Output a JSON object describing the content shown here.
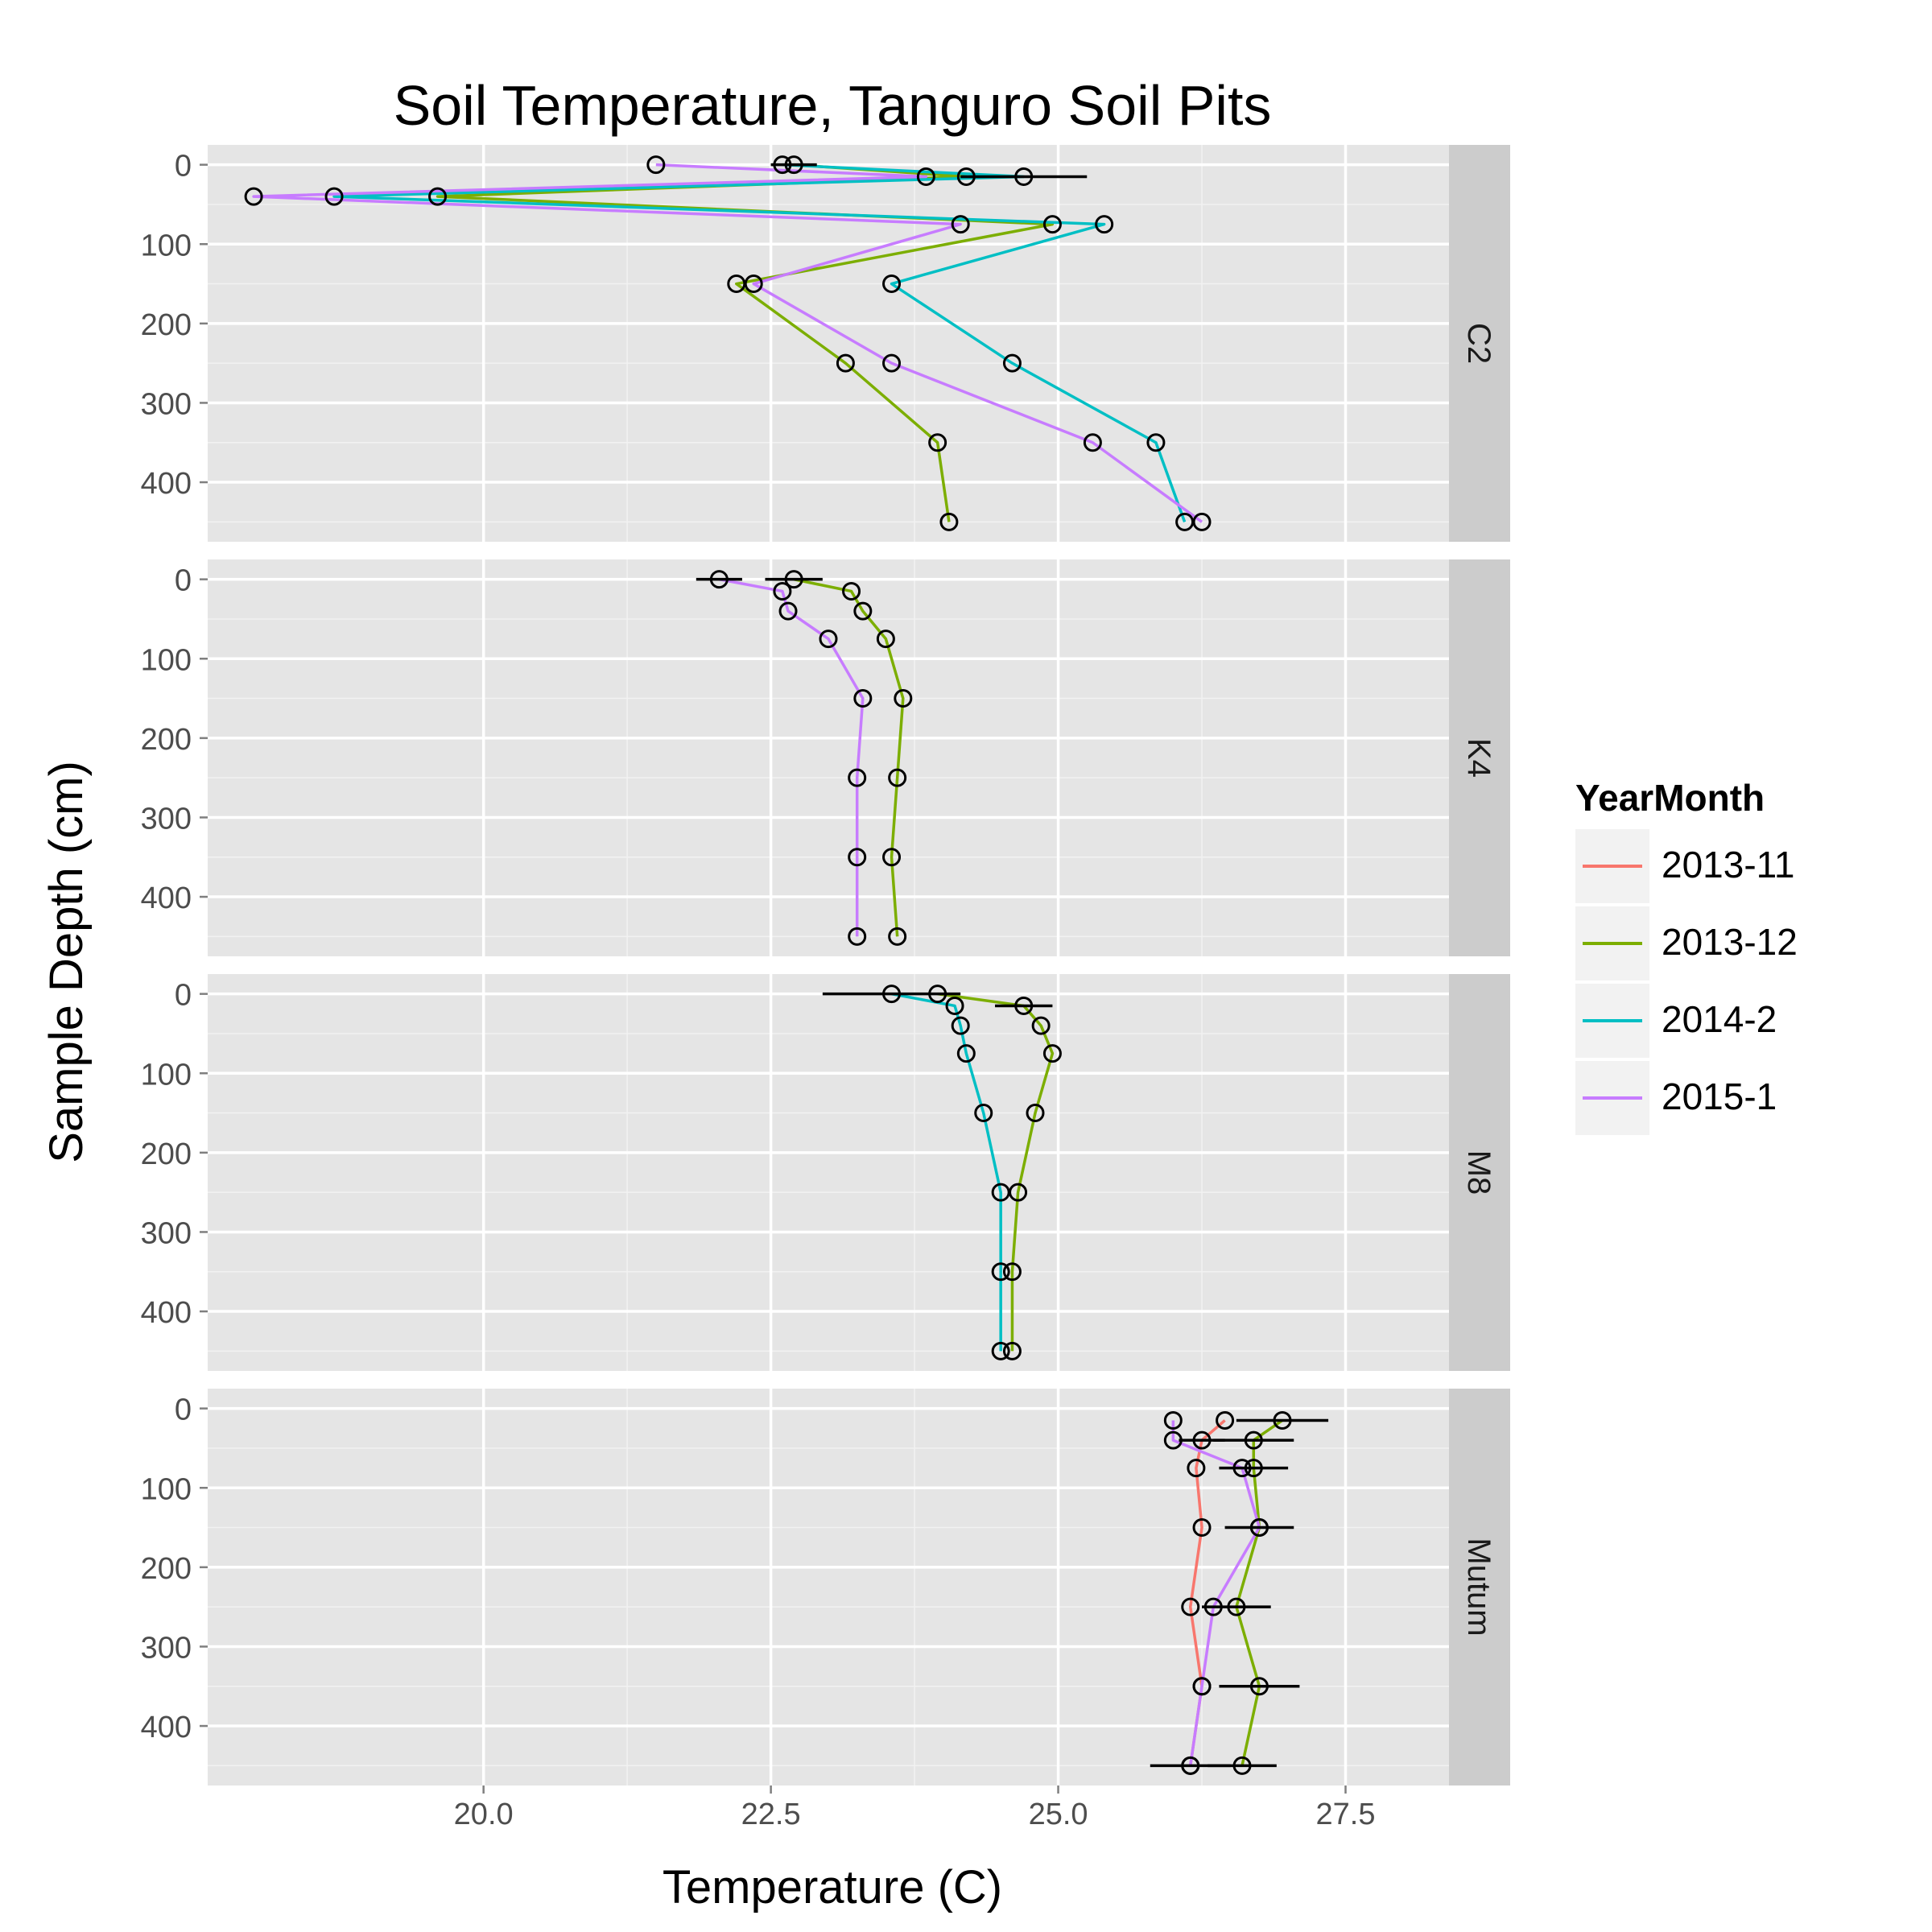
{
  "chart_data": {
    "type": "line",
    "title": "Soil Temperature, Tanguro Soil Pits",
    "xlabel": "Temperature (C)",
    "ylabel": "Sample Depth (cm)",
    "x_ticks": [
      "20.0",
      "22.5",
      "25.0",
      "27.5"
    ],
    "y_ticks": [
      "0",
      "100",
      "200",
      "300",
      "400"
    ],
    "xlim": [
      17.6,
      28.4
    ],
    "ylim": [
      -25,
      475
    ],
    "y_reversed": true,
    "grid": true,
    "legend_position": "right",
    "legend_title": "YearMonth",
    "background": "#e5e5e5",
    "strip_color": "#cccccc",
    "series_info": [
      {
        "name": "2013-11",
        "color": "#f8766d"
      },
      {
        "name": "2013-12",
        "color": "#7cae00"
      },
      {
        "name": "2014-2",
        "color": "#00bfc4"
      },
      {
        "name": "2015-1",
        "color": "#c77cff"
      }
    ],
    "panels": [
      {
        "name": "C2",
        "series": [
          {
            "name": "2013-12",
            "points": [
              {
                "x": 22.7,
                "y": 0,
                "err": 0.2
              },
              {
                "x": 24.2,
                "y": 15
              },
              {
                "x": 19.6,
                "y": 40
              },
              {
                "x": 24.95,
                "y": 75
              },
              {
                "x": 22.2,
                "y": 150
              },
              {
                "x": 23.15,
                "y": 250
              },
              {
                "x": 23.95,
                "y": 350
              },
              {
                "x": 24.05,
                "y": 450
              }
            ]
          },
          {
            "name": "2014-2",
            "points": [
              {
                "x": 22.6,
                "y": 0
              },
              {
                "x": 24.7,
                "y": 15,
                "err": 0.55
              },
              {
                "x": 18.7,
                "y": 40
              },
              {
                "x": 25.4,
                "y": 75
              },
              {
                "x": 23.55,
                "y": 150
              },
              {
                "x": 24.6,
                "y": 250
              },
              {
                "x": 25.85,
                "y": 350
              },
              {
                "x": 26.1,
                "y": 450
              }
            ]
          },
          {
            "name": "2015-1",
            "points": [
              {
                "x": 21.5,
                "y": 0
              },
              {
                "x": 23.85,
                "y": 15
              },
              {
                "x": 18.0,
                "y": 40
              },
              {
                "x": 24.15,
                "y": 75
              },
              {
                "x": 22.35,
                "y": 150
              },
              {
                "x": 23.55,
                "y": 250
              },
              {
                "x": 25.3,
                "y": 350
              },
              {
                "x": 26.25,
                "y": 450
              }
            ]
          }
        ]
      },
      {
        "name": "K4",
        "series": [
          {
            "name": "2013-12",
            "points": [
              {
                "x": 22.7,
                "y": 0,
                "err": 0.25
              },
              {
                "x": 23.2,
                "y": 15
              },
              {
                "x": 23.3,
                "y": 40
              },
              {
                "x": 23.5,
                "y": 75
              },
              {
                "x": 23.65,
                "y": 150
              },
              {
                "x": 23.6,
                "y": 250
              },
              {
                "x": 23.55,
                "y": 350
              },
              {
                "x": 23.6,
                "y": 450
              }
            ]
          },
          {
            "name": "2015-1",
            "points": [
              {
                "x": 22.05,
                "y": 0,
                "err": 0.2
              },
              {
                "x": 22.6,
                "y": 15
              },
              {
                "x": 22.65,
                "y": 40
              },
              {
                "x": 23.0,
                "y": 75
              },
              {
                "x": 23.3,
                "y": 150
              },
              {
                "x": 23.25,
                "y": 250
              },
              {
                "x": 23.25,
                "y": 350
              },
              {
                "x": 23.25,
                "y": 450
              }
            ]
          }
        ]
      },
      {
        "name": "M8",
        "series": [
          {
            "name": "2013-12",
            "points": [
              {
                "x": 23.95,
                "y": 0
              },
              {
                "x": 24.7,
                "y": 15,
                "err": 0.25
              },
              {
                "x": 24.85,
                "y": 40
              },
              {
                "x": 24.95,
                "y": 75
              },
              {
                "x": 24.8,
                "y": 150
              },
              {
                "x": 24.65,
                "y": 250
              },
              {
                "x": 24.6,
                "y": 350
              },
              {
                "x": 24.6,
                "y": 450
              }
            ]
          },
          {
            "name": "2014-2",
            "points": [
              {
                "x": 23.55,
                "y": 0,
                "err": 0.6
              },
              {
                "x": 24.1,
                "y": 15
              },
              {
                "x": 24.15,
                "y": 40
              },
              {
                "x": 24.2,
                "y": 75
              },
              {
                "x": 24.35,
                "y": 150
              },
              {
                "x": 24.5,
                "y": 250
              },
              {
                "x": 24.5,
                "y": 350
              },
              {
                "x": 24.5,
                "y": 450
              }
            ]
          }
        ]
      },
      {
        "name": "Mutum",
        "series": [
          {
            "name": "2013-11",
            "points": [
              {
                "x": 26.45,
                "y": 15
              },
              {
                "x": 26.25,
                "y": 40,
                "err": 0.2
              },
              {
                "x": 26.2,
                "y": 75
              },
              {
                "x": 26.25,
                "y": 150
              },
              {
                "x": 26.15,
                "y": 250
              },
              {
                "x": 26.25,
                "y": 350
              },
              {
                "x": 26.15,
                "y": 450
              }
            ]
          },
          {
            "name": "2013-12",
            "points": [
              {
                "x": 26.95,
                "y": 15,
                "err": 0.4
              },
              {
                "x": 26.7,
                "y": 40,
                "err": 0.35
              },
              {
                "x": 26.7,
                "y": 75,
                "err": 0.3
              },
              {
                "x": 26.75,
                "y": 150,
                "err": 0.3
              },
              {
                "x": 26.55,
                "y": 250,
                "err": 0.3
              },
              {
                "x": 26.75,
                "y": 350,
                "err": 0.35
              },
              {
                "x": 26.6,
                "y": 450,
                "err": 0.3
              }
            ]
          },
          {
            "name": "2015-1",
            "points": [
              {
                "x": 26.0,
                "y": 15
              },
              {
                "x": 26.0,
                "y": 40
              },
              {
                "x": 26.6,
                "y": 75
              },
              {
                "x": 26.75,
                "y": 150
              },
              {
                "x": 26.35,
                "y": 250
              },
              {
                "x": 26.25,
                "y": 350
              },
              {
                "x": 26.15,
                "y": 450,
                "err": 0.35
              }
            ]
          }
        ]
      }
    ]
  }
}
